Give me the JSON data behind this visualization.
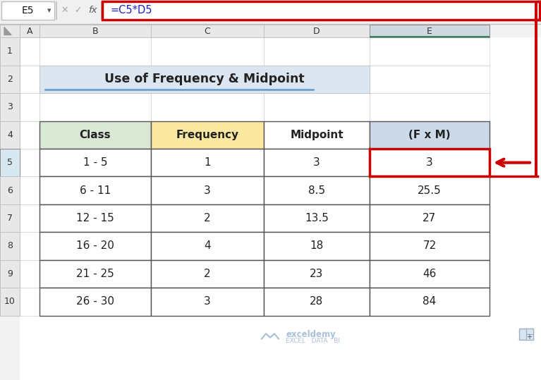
{
  "title": "Use of Frequency & Midpoint",
  "formula_bar_text": "=C5*D5",
  "cell_ref": "E5",
  "headers": [
    "Class",
    "Frequency",
    "Midpoint",
    "(F x M)"
  ],
  "rows": [
    [
      "1 - 5",
      "1",
      "3",
      "3"
    ],
    [
      "6 - 11",
      "3",
      "8.5",
      "25.5"
    ],
    [
      "12 - 15",
      "2",
      "13.5",
      "27"
    ],
    [
      "16 - 20",
      "4",
      "18",
      "72"
    ],
    [
      "21 - 25",
      "2",
      "23",
      "46"
    ],
    [
      "26 - 30",
      "3",
      "28",
      "84"
    ]
  ],
  "header_bg_colors": [
    "#d9e8d4",
    "#fce8a0",
    "#ffffff",
    "#ccd9e8"
  ],
  "table_border_color": "#555555",
  "title_bg_color": "#dce6f1",
  "highlight_color": "#cc0000",
  "excel_bg_color": "#f2f2f2",
  "sheet_bg_color": "#ffffff",
  "col_header_bg": "#e8e8e8",
  "e_col_header_bg": "#d0d8e0",
  "row5_header_bg": "#d8e8f0",
  "col_letters": [
    "A",
    "B",
    "C",
    "D",
    "E"
  ],
  "row_numbers": [
    "1",
    "2",
    "3",
    "4",
    "5",
    "6",
    "7",
    "8",
    "9",
    "10"
  ],
  "watermark_color": "#a8c0d8",
  "green_line_color": "#2e8b57",
  "underline_color": "#5b9bd5",
  "formula_font_color": "#1f1fcc",
  "fx_color": "#555555",
  "icon_color": "#aaaaaa"
}
